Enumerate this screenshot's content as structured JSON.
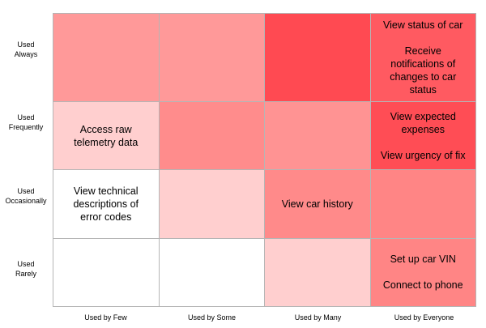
{
  "colors": {
    "level_0": "#ffffff",
    "level_1": "#ffcfcf",
    "level_2": "#ff9494",
    "level_3": "#ff8585",
    "level_4": "#ff5a5f",
    "level_5": "#ff4a52"
  },
  "row_labels": [
    {
      "line1": "Used",
      "line2": "Always"
    },
    {
      "line1": "Used",
      "line2": "Frequently"
    },
    {
      "line1": "Used",
      "line2": "Occasionally"
    },
    {
      "line1": "Used",
      "line2": "Rarely"
    }
  ],
  "column_labels": [
    "Used by Few",
    "Used by Some",
    "Used by Many",
    "Used by Everyone"
  ],
  "grid": [
    [
      {
        "color": "#ff9999",
        "items": []
      },
      {
        "color": "#ff9999",
        "items": []
      },
      {
        "color": "#ff4a52",
        "items": []
      },
      {
        "color": "#ff5a61",
        "items": [
          "View status of car",
          "Receive notifications of changes to car status"
        ]
      }
    ],
    [
      {
        "color": "#ffcfcf",
        "items": [
          "Access raw telemetry data"
        ]
      },
      {
        "color": "#ff8c8c",
        "items": []
      },
      {
        "color": "#ff9393",
        "items": []
      },
      {
        "color": "#ff4d55",
        "items": [
          "View expected expenses",
          "View urgency of fix"
        ]
      }
    ],
    [
      {
        "color": "#ffffff",
        "items": [
          "View technical descriptions of error codes"
        ]
      },
      {
        "color": "#ffcfcf",
        "items": []
      },
      {
        "color": "#ff8a8a",
        "items": [
          "View car history"
        ]
      },
      {
        "color": "#ff8585",
        "items": []
      }
    ],
    [
      {
        "color": "#ffffff",
        "items": []
      },
      {
        "color": "#ffffff",
        "items": []
      },
      {
        "color": "#ffcfcf",
        "items": []
      },
      {
        "color": "#ff8585",
        "items": [
          "Set up car VIN",
          "Connect to phone"
        ]
      }
    ]
  ]
}
